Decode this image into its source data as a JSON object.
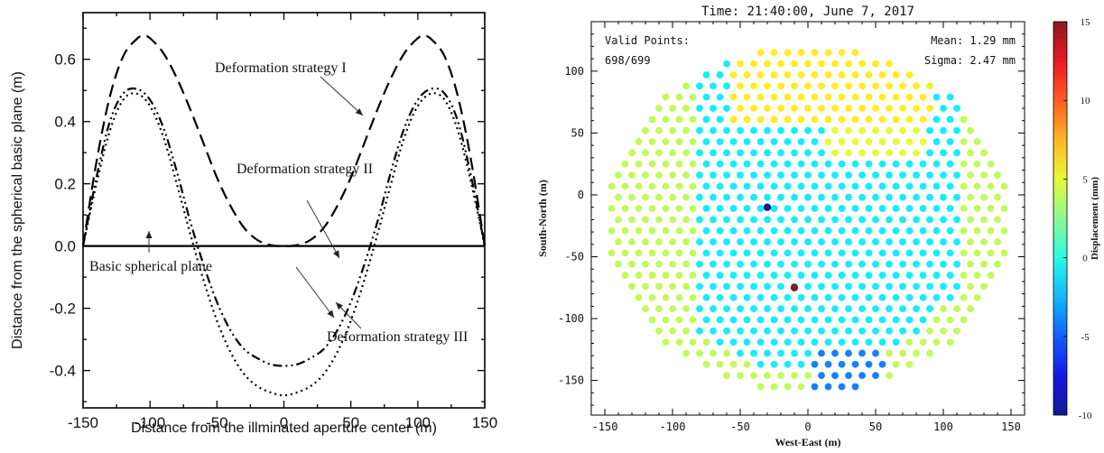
{
  "chart_data": [
    {
      "type": "line",
      "xlabel": "Distance from the illminated aperture center (m)",
      "ylabel": "Distance from the spherical basic plane (m)",
      "xlim": [
        -150,
        150
      ],
      "ylim": [
        -0.52,
        0.75
      ],
      "xticks": [
        -150,
        -100,
        -50,
        0,
        50,
        100,
        150
      ],
      "yticks": [
        -0.4,
        -0.2,
        0.0,
        0.2,
        0.4,
        0.6
      ],
      "xtick_labels": [
        "-150",
        "-100",
        "-50",
        "0",
        "50",
        "100",
        "150"
      ],
      "ytick_labels": [
        "-0.4",
        "-0.2",
        "0.0",
        "0.2",
        "0.4",
        "0.6"
      ],
      "series": [
        {
          "name": "Deformation strategy I",
          "style": "dashed",
          "x": [
            -150,
            -140,
            -130,
            -120,
            -110,
            -105,
            -100,
            -90,
            -80,
            -70,
            -60,
            -50,
            -40,
            -30,
            -20,
            -10,
            0,
            10,
            20,
            30,
            40,
            50,
            60,
            70,
            80,
            90,
            100,
            105,
            110,
            120,
            130,
            140,
            150
          ],
          "y": [
            0.0,
            0.27,
            0.48,
            0.61,
            0.665,
            0.675,
            0.668,
            0.62,
            0.54,
            0.44,
            0.33,
            0.22,
            0.13,
            0.06,
            0.02,
            0.003,
            0.0,
            0.003,
            0.02,
            0.06,
            0.13,
            0.22,
            0.33,
            0.44,
            0.54,
            0.62,
            0.668,
            0.675,
            0.665,
            0.61,
            0.48,
            0.27,
            0.0
          ]
        },
        {
          "name": "Deformation strategy II",
          "style": "dash-dot-dot",
          "x": [
            -150,
            -140,
            -130,
            -120,
            -110,
            -100,
            -90,
            -80,
            -70,
            -60,
            -50,
            -40,
            -30,
            -20,
            -10,
            0,
            10,
            20,
            30,
            40,
            50,
            60,
            70,
            80,
            90,
            100,
            110,
            120,
            130,
            140,
            150
          ],
          "y": [
            0.0,
            0.22,
            0.4,
            0.49,
            0.505,
            0.47,
            0.38,
            0.24,
            0.08,
            -0.06,
            -0.18,
            -0.27,
            -0.33,
            -0.36,
            -0.38,
            -0.385,
            -0.38,
            -0.36,
            -0.33,
            -0.27,
            -0.18,
            -0.06,
            0.08,
            0.24,
            0.38,
            0.47,
            0.505,
            0.49,
            0.4,
            0.22,
            0.0
          ]
        },
        {
          "name": "Deformation strategy III",
          "style": "dotted",
          "x": [
            -150,
            -140,
            -130,
            -120,
            -110,
            -100,
            -90,
            -80,
            -70,
            -60,
            -50,
            -40,
            -30,
            -20,
            -10,
            0,
            10,
            20,
            30,
            40,
            50,
            60,
            70,
            80,
            90,
            100,
            110,
            120,
            130,
            140,
            150
          ],
          "y": [
            0.0,
            0.2,
            0.37,
            0.47,
            0.49,
            0.45,
            0.35,
            0.2,
            0.04,
            -0.11,
            -0.24,
            -0.34,
            -0.41,
            -0.45,
            -0.47,
            -0.48,
            -0.47,
            -0.45,
            -0.41,
            -0.34,
            -0.24,
            -0.11,
            0.04,
            0.2,
            0.35,
            0.45,
            0.49,
            0.47,
            0.37,
            0.2,
            0.0
          ]
        },
        {
          "name": "Basic spherical plane",
          "style": "solid",
          "x": [
            -150,
            150
          ],
          "y": [
            0.0,
            0.0
          ]
        }
      ],
      "annotations": [
        "Deformation strategy I",
        "Deformation strategy  II",
        "Deformation strategy III",
        "Basic spherical plane"
      ],
      "grid": false
    },
    {
      "type": "scatter",
      "title": "Time:  21:40:00, June 7, 2017",
      "xlabel": "West-East (m)",
      "ylabel": "South-North (m)",
      "xlim": [
        -160,
        160
      ],
      "ylim": [
        -178,
        140
      ],
      "xticks": [
        -150,
        -100,
        -50,
        0,
        50,
        100,
        150
      ],
      "yticks": [
        -150,
        -100,
        -50,
        0,
        50,
        100
      ],
      "xtick_labels": [
        "-150",
        "-100",
        "-50",
        "0",
        "50",
        "100",
        "150"
      ],
      "ytick_labels": [
        "-150",
        "-100",
        "-50",
        "0",
        "50",
        "100"
      ],
      "grid_spacing_m": 10,
      "aperture_center": [
        0,
        -20
      ],
      "aperture_radius": 148,
      "colorbar": {
        "label": "Displacement (mm)",
        "min": -10,
        "max": 15,
        "ticks": [
          -10,
          -5,
          0,
          5,
          10,
          15
        ],
        "tick_labels": [
          "-10",
          "-5",
          "0",
          "5",
          "10",
          "15"
        ],
        "placement": "right"
      },
      "annotations": {
        "valid_points_label": "Valid Points:",
        "valid_points_value": "698/699",
        "mean": "Mean: 1.29 mm",
        "sigma": "Sigma: 2.47 mm"
      },
      "outliers": [
        {
          "x": -30,
          "y": -10,
          "value": -10
        },
        {
          "x": -10,
          "y": -75,
          "value": 15
        }
      ],
      "grid": false
    }
  ]
}
